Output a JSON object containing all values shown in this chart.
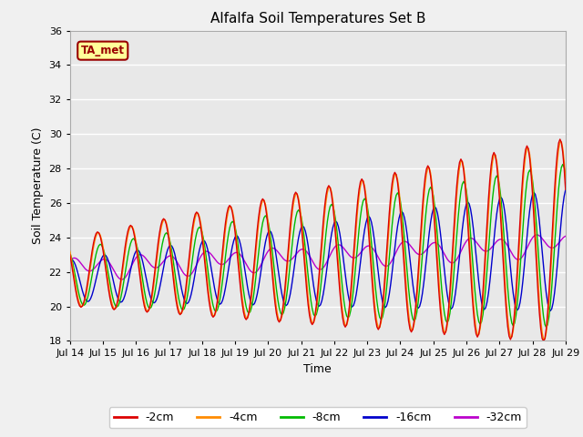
{
  "title": "Alfalfa Soil Temperatures Set B",
  "xlabel": "Time",
  "ylabel": "Soil Temperature (C)",
  "ylim": [
    18,
    36
  ],
  "xlim": [
    0,
    360
  ],
  "fig_bg": "#f0f0f0",
  "plot_bg": "#e8e8e8",
  "ta_met_label": "TA_met",
  "ta_met_color": "#990000",
  "ta_met_bg": "#ffff99",
  "legend_entries": [
    "-2cm",
    "-4cm",
    "-8cm",
    "-16cm",
    "-32cm"
  ],
  "line_colors": [
    "#dd0000",
    "#ff8c00",
    "#00bb00",
    "#0000cc",
    "#bb00cc"
  ],
  "x_tick_labels": [
    "Jul 14",
    "Jul 15",
    "Jul 16",
    "Jul 17",
    "Jul 18",
    "Jul 19",
    "Jul 20",
    "Jul 21",
    "Jul 22",
    "Jul 23",
    "Jul 24",
    "Jul 25",
    "Jul 26",
    "Jul 27",
    "Jul 28",
    "Jul 29"
  ],
  "x_tick_positions": [
    0,
    24,
    48,
    72,
    96,
    120,
    144,
    168,
    192,
    216,
    240,
    264,
    288,
    312,
    336,
    360
  ],
  "yticks": [
    18,
    20,
    22,
    24,
    26,
    28,
    30,
    32,
    34,
    36
  ]
}
